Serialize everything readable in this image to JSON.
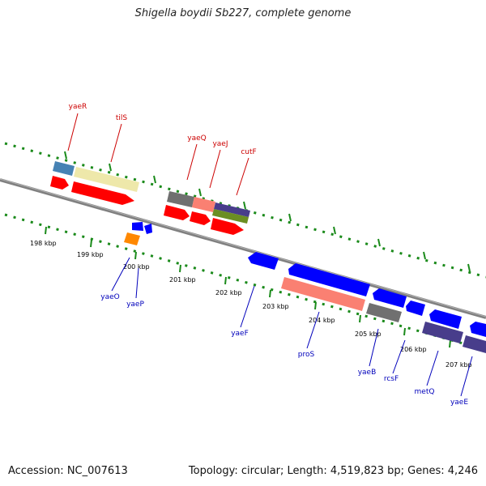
{
  "title": "Shigella boydii Sb227, complete genome",
  "footer": {
    "accession": "Accession: NC_007613",
    "topology": "Topology: circular; Length: 4,519,823 bp; Genes: 4,246"
  },
  "scale_labels": [
    "198 kbp",
    "199 kbp",
    "200 kbp",
    "201 kbp",
    "202 kbp",
    "203 kbp",
    "204 kbp",
    "205 kbp",
    "206 kbp",
    "207 kbp"
  ],
  "genes_top": [
    "yaeR",
    "tilS",
    "yaeQ",
    "yaeJ",
    "cutF"
  ],
  "genes_bottom": [
    "yaeO",
    "yaeP",
    "yaeF",
    "proS",
    "yaeB",
    "rcsF",
    "metQ",
    "yaeE"
  ],
  "colors": {
    "forward_label": "#cc0000",
    "reverse_label": "#0000bb",
    "tick": "#1a8a1a",
    "backbone": "#808080",
    "red": "#ff0000",
    "blue": "#0000ff",
    "orange": "#ff8800",
    "steelblue": "#4682b4",
    "khaki": "#eee8aa",
    "salmon": "#fa8072",
    "gray": "#707070",
    "purple": "#483d8b",
    "olive": "#6b8e23"
  }
}
